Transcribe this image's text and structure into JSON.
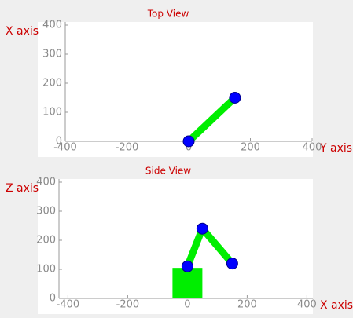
{
  "chart_data": [
    {
      "type": "line",
      "title": "Top View",
      "xlabel": "Y axis",
      "ylabel": "X axis",
      "xlim": [
        -400,
        400
      ],
      "ylim": [
        0,
        400
      ],
      "xticks": [
        -400,
        -200,
        0,
        200,
        400
      ],
      "yticks": [
        0,
        100,
        200,
        300,
        400
      ],
      "series": [
        {
          "color": "#00ee00",
          "marker_color": "#0000ff",
          "x": [
            0,
            150
          ],
          "values": [
            0,
            150
          ]
        }
      ]
    },
    {
      "type": "line",
      "title": "Side View",
      "xlabel": "X axis",
      "ylabel": "Z axis",
      "xlim": [
        -430,
        420
      ],
      "ylim": [
        0,
        400
      ],
      "xticks": [
        -400,
        -200,
        0,
        200,
        400
      ],
      "yticks": [
        0,
        100,
        200,
        300,
        400
      ],
      "base": {
        "x": [
          -50,
          50
        ],
        "height": 105,
        "color": "#00ee00"
      },
      "series": [
        {
          "color": "#00ee00",
          "marker_color": "#0000ff",
          "x": [
            0,
            50,
            150
          ],
          "values": [
            110,
            240,
            120
          ]
        }
      ]
    }
  ]
}
